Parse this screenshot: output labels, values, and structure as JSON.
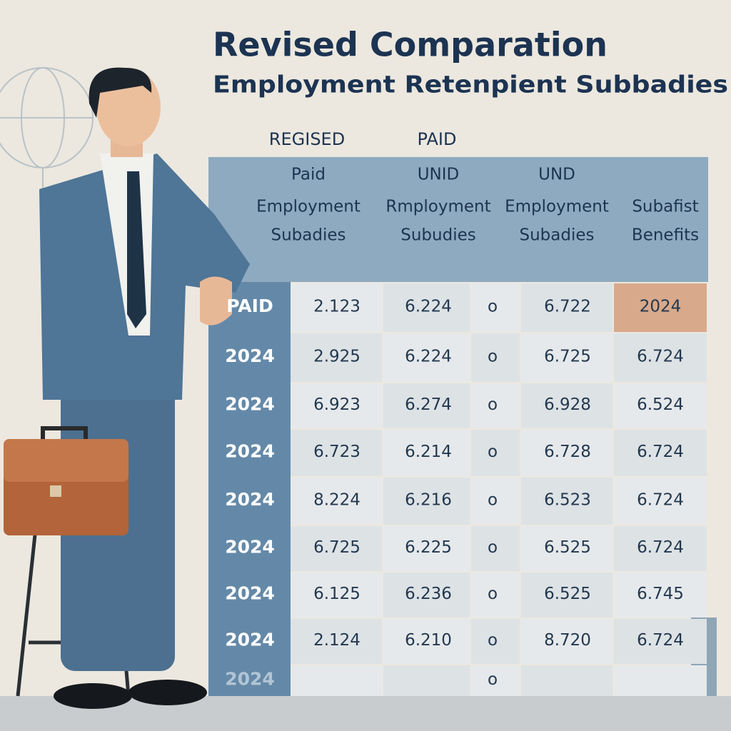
{
  "header": {
    "title": "Revised Comparation",
    "subtitle": "Employment Retenpient Subbadies",
    "labels": [
      "REGISED",
      "PAID"
    ]
  },
  "table": {
    "columns": [
      [
        "Paid",
        "Employment",
        "Subadies"
      ],
      [
        "UNID",
        "Rmployment",
        "Subudies"
      ],
      [
        "UND",
        "Employment",
        "Subadies"
      ],
      [
        "Subafist",
        "Benefits"
      ]
    ],
    "rows": [
      [
        "PAID",
        "2.123",
        "6.224",
        "o",
        "6.722",
        "2024"
      ],
      [
        "2024",
        "2.925",
        "6.224",
        "o",
        "6.725",
        "6.724"
      ],
      [
        "2024",
        "6.923",
        "6.274",
        "o",
        "6.928",
        "6.524"
      ],
      [
        "2024",
        "6.723",
        "6.214",
        "o",
        "6.728",
        "6.724"
      ],
      [
        "2024",
        "8.224",
        "6.216",
        "o",
        "6.523",
        "6.724"
      ],
      [
        "2024",
        "6.725",
        "6.225",
        "o",
        "6.525",
        "6.724"
      ],
      [
        "2024",
        "6.125",
        "6.236",
        "o",
        "6.525",
        "6.745"
      ],
      [
        "2024",
        "2.124",
        "6.210",
        "o",
        "8.720",
        "6.724"
      ]
    ],
    "last_row": {
      "label": "2024",
      "mark": "o"
    }
  }
}
